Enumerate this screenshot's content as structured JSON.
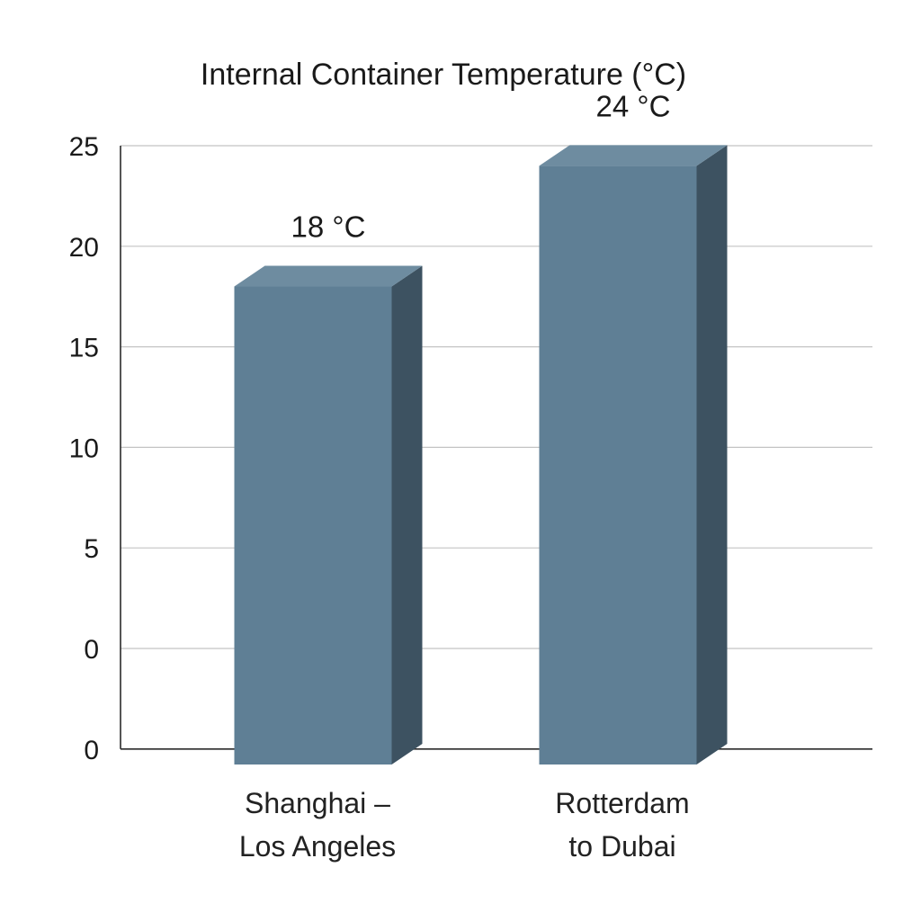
{
  "chart_data": {
    "type": "bar",
    "title": "Internal Container Temperature (°C)",
    "xlabel": "",
    "ylabel": "",
    "categories": [
      "Shanghai –\nLos Angeles",
      "Rotterdam\nto Dubai"
    ],
    "values": [
      18,
      24
    ],
    "data_labels": [
      "18 °C",
      "24 °C"
    ],
    "y_ticks": [
      "0",
      "0",
      "5",
      "10",
      "15",
      "20",
      "25"
    ],
    "ylim": [
      -5,
      25
    ],
    "grid": true,
    "legend": "none",
    "style": "3d-bar",
    "colors": {
      "bar_front": "#5f7f95",
      "bar_top": "#6e8ca0",
      "bar_side": "#3d5261",
      "grid": "#c4c4c4",
      "axis": "#2a2a2a"
    }
  }
}
